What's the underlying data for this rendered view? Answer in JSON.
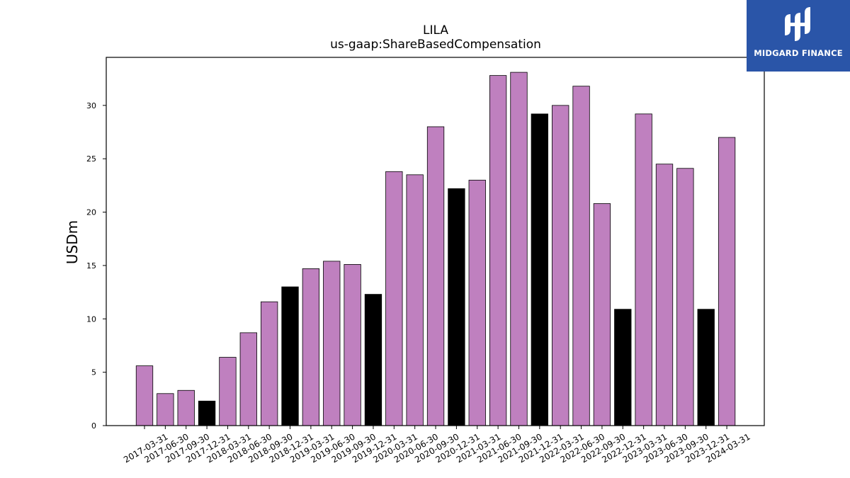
{
  "brand": {
    "name": "MIDGARD FINANCE",
    "color": "#2a55a8",
    "icon": "midgard-logo-icon"
  },
  "colors": {
    "primary_bar": "#bf80bf",
    "highlight_bar": "#000000",
    "edge": "#000000"
  },
  "chart_data": {
    "type": "bar",
    "title": "LILA",
    "subtitle": "us-gaap:ShareBasedCompensation",
    "xlabel": "",
    "ylabel": "USDm",
    "ylim": [
      0,
      34.5
    ],
    "yticks": [
      0,
      5,
      10,
      15,
      20,
      25,
      30
    ],
    "grid": false,
    "categories": [
      "2017-03-31",
      "2017-06-30",
      "2017-09-30",
      "2017-12-31",
      "2018-03-31",
      "2018-06-30",
      "2018-09-30",
      "2018-12-31",
      "2019-03-31",
      "2019-06-30",
      "2019-09-30",
      "2019-12-31",
      "2020-03-31",
      "2020-06-30",
      "2020-09-30",
      "2020-12-31",
      "2021-03-31",
      "2021-06-30",
      "2021-09-30",
      "2021-12-31",
      "2022-03-31",
      "2022-06-30",
      "2022-09-30",
      "2022-12-31",
      "2023-03-31",
      "2023-06-30",
      "2023-09-30",
      "2023-12-31",
      "2024-03-31"
    ],
    "values": [
      5.6,
      3.0,
      3.3,
      2.3,
      6.4,
      8.7,
      11.6,
      13.0,
      14.7,
      15.4,
      15.1,
      12.3,
      23.8,
      23.5,
      28.0,
      22.2,
      23.0,
      32.8,
      33.1,
      29.2,
      30.0,
      31.8,
      20.8,
      10.9,
      29.2,
      24.5,
      24.1,
      10.9,
      27.0
    ],
    "highlight": [
      false,
      false,
      false,
      true,
      false,
      false,
      false,
      true,
      false,
      false,
      false,
      true,
      false,
      false,
      false,
      true,
      false,
      false,
      false,
      true,
      false,
      false,
      false,
      true,
      false,
      false,
      false,
      true,
      false
    ]
  }
}
